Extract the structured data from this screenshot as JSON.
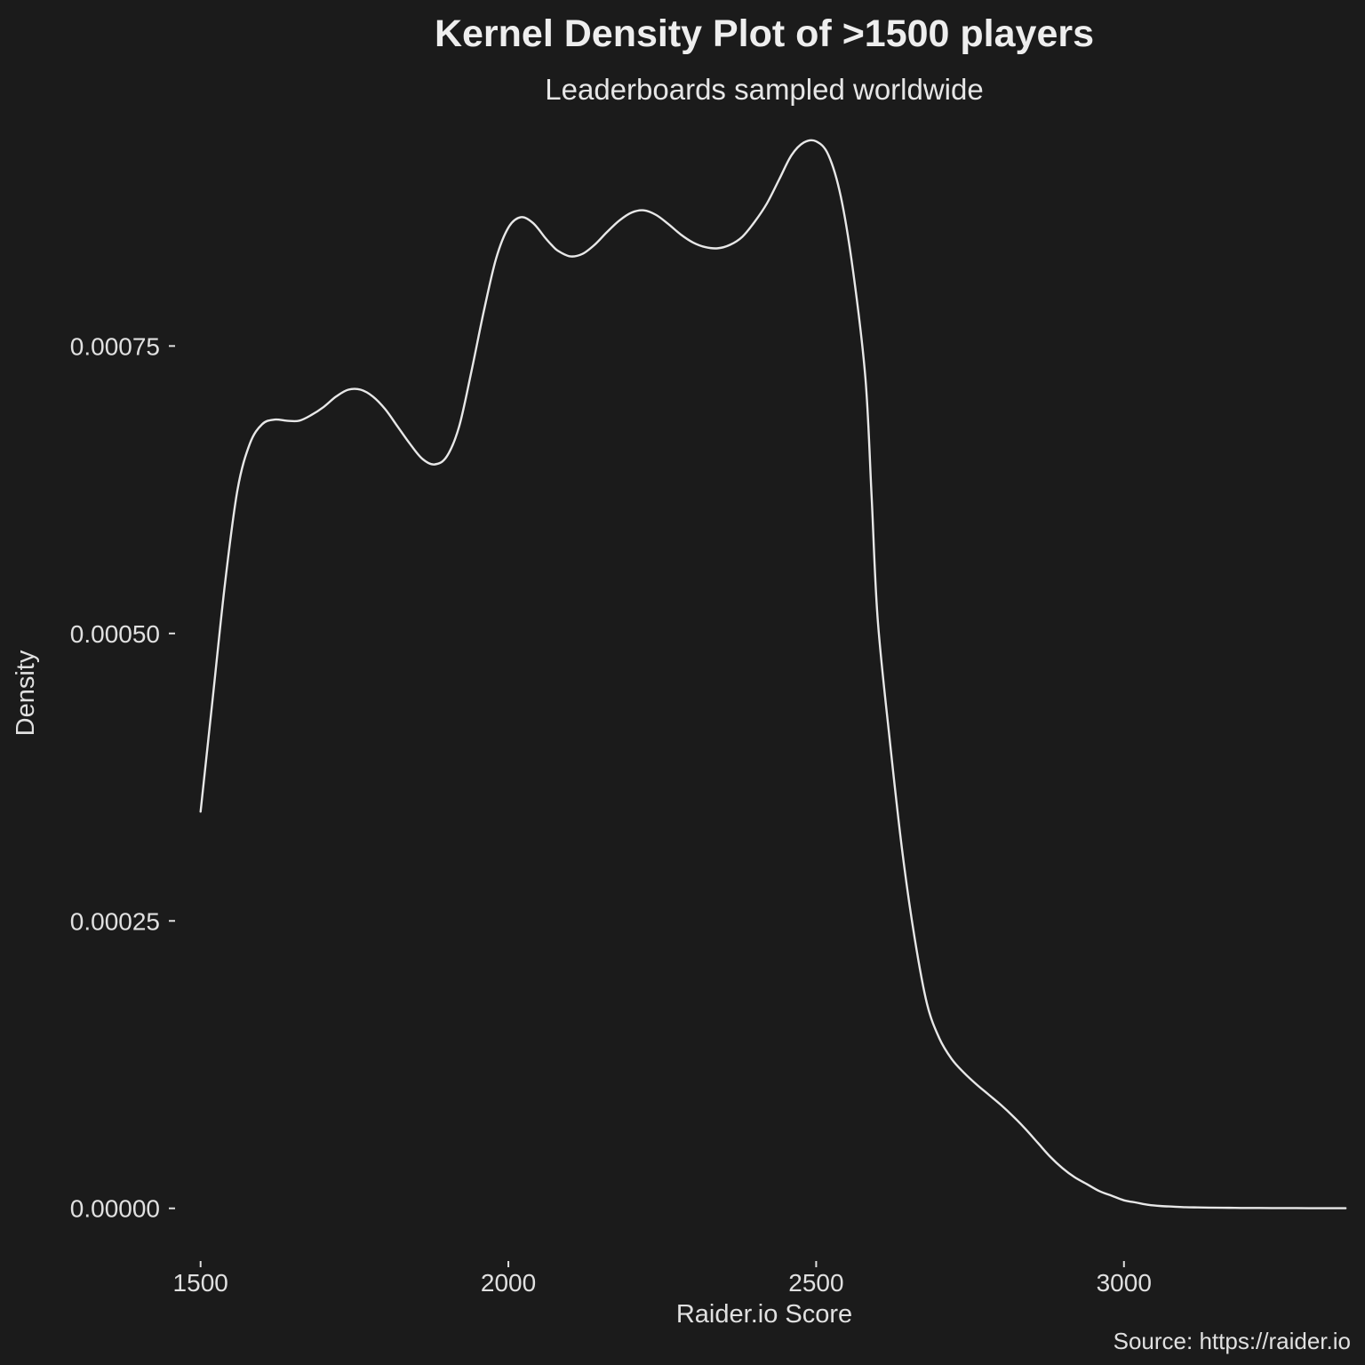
{
  "chart_data": {
    "type": "line",
    "title": "Kernel Density Plot of >1500 players",
    "subtitle": "Leaderboards sampled worldwide",
    "xlabel": "Raider.io Score",
    "ylabel": "Density",
    "caption": "Source: https://raider.io",
    "xlim": [
      1460,
      3380
    ],
    "ylim": [
      -3.5e-05,
      0.000935
    ],
    "x_ticks": [
      {
        "value": 1500,
        "label": "1500"
      },
      {
        "value": 2000,
        "label": "2000"
      },
      {
        "value": 2500,
        "label": "2500"
      },
      {
        "value": 3000,
        "label": "3000"
      }
    ],
    "y_ticks": [
      {
        "value": 0.0,
        "label": "0.00000"
      },
      {
        "value": 0.00025,
        "label": "0.00025"
      },
      {
        "value": 0.0005,
        "label": "0.00050"
      },
      {
        "value": 0.00075,
        "label": "0.00075"
      }
    ],
    "grid": false,
    "legend": "none",
    "colors": {
      "background": "#1b1b1b",
      "line": "#e8e8e8",
      "text": "#e0e0e0"
    },
    "series": [
      {
        "x": [
          1500,
          1520,
          1540,
          1560,
          1580,
          1600,
          1620,
          1640,
          1660,
          1680,
          1700,
          1720,
          1740,
          1760,
          1780,
          1800,
          1820,
          1840,
          1860,
          1880,
          1900,
          1920,
          1940,
          1960,
          1980,
          2000,
          2020,
          2040,
          2060,
          2070,
          2080,
          2100,
          2120,
          2140,
          2160,
          2180,
          2200,
          2220,
          2240,
          2260,
          2280,
          2300,
          2320,
          2340,
          2360,
          2380,
          2400,
          2420,
          2440,
          2460,
          2480,
          2500,
          2520,
          2540,
          2560,
          2580,
          2590,
          2600,
          2620,
          2640,
          2660,
          2680,
          2700,
          2720,
          2740,
          2760,
          2780,
          2800,
          2820,
          2840,
          2860,
          2880,
          2900,
          2920,
          2940,
          2960,
          2980,
          3000,
          3020,
          3040,
          3060,
          3080,
          3100,
          3120,
          3140,
          3160,
          3180,
          3200,
          3220,
          3240,
          3260,
          3280,
          3300,
          3320,
          3340,
          3360
        ],
        "y": [
          0.000345,
          0.000445,
          0.000545,
          0.000625,
          0.000665,
          0.000682,
          0.000686,
          0.000685,
          0.000685,
          0.00069,
          0.000697,
          0.000706,
          0.000712,
          0.000712,
          0.000706,
          0.000695,
          0.00068,
          0.000665,
          0.000652,
          0.000647,
          0.000654,
          0.00068,
          0.000728,
          0.00078,
          0.000826,
          0.000853,
          0.000862,
          0.000857,
          0.000844,
          0.000838,
          0.000833,
          0.000828,
          0.00083,
          0.000838,
          0.000849,
          0.000859,
          0.000866,
          0.000868,
          0.000864,
          0.000856,
          0.000847,
          0.00084,
          0.000836,
          0.000835,
          0.000838,
          0.000845,
          0.000858,
          0.000874,
          0.000895,
          0.000916,
          0.000927,
          0.000928,
          0.000916,
          0.00088,
          0.000815,
          0.000722,
          0.00062,
          0.000512,
          0.000405,
          0.00031,
          0.000235,
          0.000178,
          0.000148,
          0.00013,
          0.000118,
          0.000108,
          9.9e-05,
          9e-05,
          8e-05,
          6.9e-05,
          5.7e-05,
          4.5e-05,
          3.5e-05,
          2.7e-05,
          2.1e-05,
          1.5e-05,
          1.1e-05,
          7e-06,
          5e-06,
          3e-06,
          2e-06,
          1.5e-06,
          1e-06,
          8e-07,
          6e-07,
          5e-07,
          4e-07,
          3e-07,
          3e-07,
          2e-07,
          2e-07,
          2e-07,
          1e-07,
          1e-07,
          1e-07,
          1e-07
        ]
      }
    ]
  }
}
